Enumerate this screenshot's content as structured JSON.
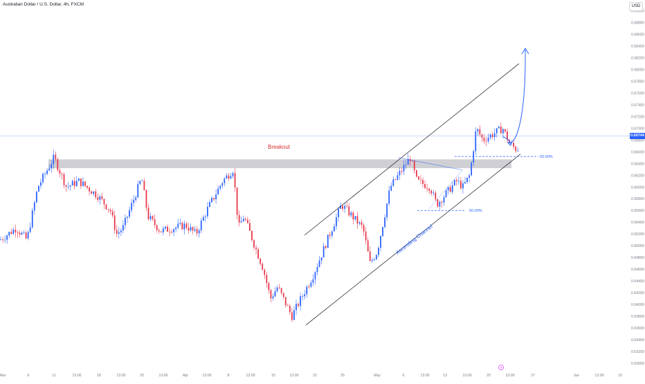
{
  "header": {
    "symbol_title": "Australian Dollar / U.S. Dollar, 4h, FXCM",
    "currency": "USD"
  },
  "current_price": "0.66744",
  "colors": {
    "up": "#2962ff",
    "down": "#e8364a",
    "axis_text": "#787b86",
    "channel": "#131722",
    "annotation_blue": "#2962ff",
    "breakout_red": "#d32f2f",
    "zone_fill": "#c8c8cc"
  },
  "chart_data": {
    "type": "candlestick",
    "title": "Australian Dollar / U.S. Dollar, 4h, FXCM",
    "y_axis": {
      "ticks": [
        "0.69000",
        "0.68800",
        "0.68600",
        "0.68400",
        "0.68200",
        "0.68000",
        "0.67800",
        "0.67600",
        "0.67400",
        "0.67200",
        "0.67000",
        "0.66800",
        "0.66600",
        "0.66400",
        "0.66200",
        "0.66000",
        "0.65800",
        "0.65600",
        "0.65400",
        "0.65200",
        "0.65000",
        "0.64800",
        "0.64600",
        "0.64400",
        "0.64200",
        "0.64000",
        "0.63800",
        "0.63600",
        "0.63400",
        "0.63200",
        "0.63000"
      ],
      "range": [
        0.6296,
        0.6911
      ]
    },
    "x_axis": {
      "ticks": [
        "Mar",
        "6",
        "11",
        "13:00",
        "18",
        "13:00",
        "25",
        "13:00",
        "Apr",
        "13:00",
        "8",
        "13:00",
        "15",
        "13:00",
        "22",
        "25",
        "May",
        "6",
        "13:00",
        "13",
        "13:00",
        "20",
        "13:00",
        "27",
        "Jun",
        "13:00",
        "10"
      ]
    },
    "price_path": [
      {
        "date": "Mar 1",
        "price": 0.651
      },
      {
        "date": "Mar 4",
        "price": 0.653
      },
      {
        "date": "Mar 6",
        "price": 0.651
      },
      {
        "date": "Mar 8",
        "price": 0.66
      },
      {
        "date": "Mar 11",
        "price": 0.665
      },
      {
        "date": "Mar 13",
        "price": 0.66
      },
      {
        "date": "Mar 15",
        "price": 0.661
      },
      {
        "date": "Mar 18",
        "price": 0.6585
      },
      {
        "date": "Mar 20",
        "price": 0.656
      },
      {
        "date": "Mar 21",
        "price": 0.652
      },
      {
        "date": "Mar 22",
        "price": 0.653
      },
      {
        "date": "Mar 25",
        "price": 0.6615
      },
      {
        "date": "Mar 26",
        "price": 0.655
      },
      {
        "date": "Mar 28",
        "price": 0.6525
      },
      {
        "date": "Apr 1",
        "price": 0.6535
      },
      {
        "date": "Apr 3",
        "price": 0.652
      },
      {
        "date": "Apr 5",
        "price": 0.656
      },
      {
        "date": "Apr 8",
        "price": 0.661
      },
      {
        "date": "Apr 10",
        "price": 0.663
      },
      {
        "date": "Apr 11",
        "price": 0.653
      },
      {
        "date": "Apr 12",
        "price": 0.655
      },
      {
        "date": "Apr 15",
        "price": 0.646
      },
      {
        "date": "Apr 16",
        "price": 0.641
      },
      {
        "date": "Apr 17",
        "price": 0.643
      },
      {
        "date": "Apr 19",
        "price": 0.638
      },
      {
        "date": "Apr 22",
        "price": 0.645
      },
      {
        "date": "Apr 24",
        "price": 0.651
      },
      {
        "date": "Apr 26",
        "price": 0.657
      },
      {
        "date": "Apr 29",
        "price": 0.653
      },
      {
        "date": "Apr 30",
        "price": 0.647
      },
      {
        "date": "May 1",
        "price": 0.649
      },
      {
        "date": "May 3",
        "price": 0.66
      },
      {
        "date": "May 6",
        "price": 0.665
      },
      {
        "date": "May 7",
        "price": 0.661
      },
      {
        "date": "May 9",
        "price": 0.66
      },
      {
        "date": "May 10",
        "price": 0.657
      },
      {
        "date": "May 13",
        "price": 0.661
      },
      {
        "date": "May 14",
        "price": 0.66
      },
      {
        "date": "May 15",
        "price": 0.662
      },
      {
        "date": "May 16",
        "price": 0.67
      },
      {
        "date": "May 17",
        "price": 0.668
      },
      {
        "date": "May 20",
        "price": 0.67
      },
      {
        "date": "May 21",
        "price": 0.6675
      },
      {
        "date": "May 22",
        "price": 0.6665
      }
    ],
    "annotations": {
      "breakout_label": "Breakout",
      "channel_label": "Ascending Channel",
      "fib_upper_label": "50.00%",
      "fib_lower_label": "50.00%"
    }
  }
}
